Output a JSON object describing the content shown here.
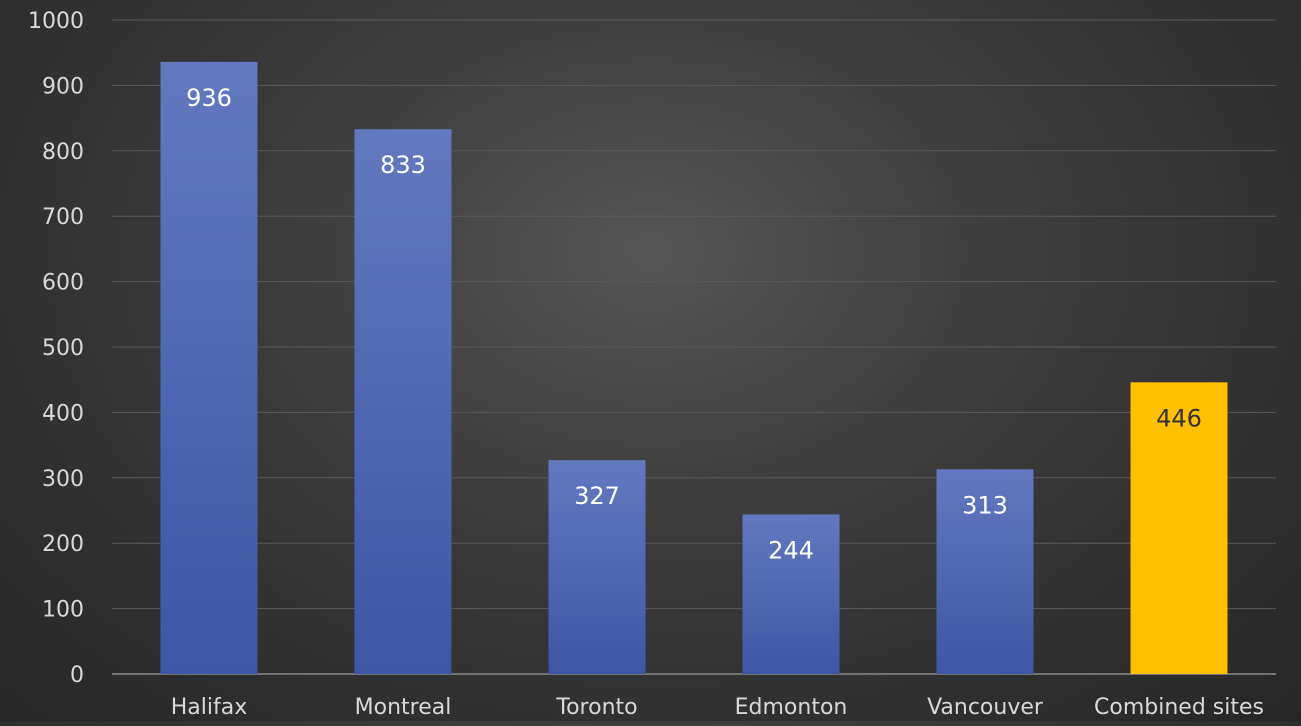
{
  "chart_data": {
    "type": "bar",
    "categories": [
      "Halifax",
      "Montreal",
      "Toronto",
      "Edmonton",
      "Vancouver",
      "Combined sites"
    ],
    "values": [
      936,
      833,
      327,
      244,
      313,
      446
    ],
    "title": "",
    "xlabel": "",
    "ylabel": "",
    "ylim": [
      0,
      1000
    ],
    "yticks": [
      0,
      100,
      200,
      300,
      400,
      500,
      600,
      700,
      800,
      900,
      1000
    ],
    "grid": true,
    "legend": "none",
    "data_labels": true,
    "colors": {
      "bar": "#4a66b3",
      "highlight_bar": "#ffc000",
      "highlight_index": 5,
      "label_on_bar": "#ffffff",
      "label_on_highlight": "#333333",
      "axis_text": "#d9d9d9",
      "gridline": "#5a5a5a",
      "background": "#3a3a3a"
    }
  }
}
